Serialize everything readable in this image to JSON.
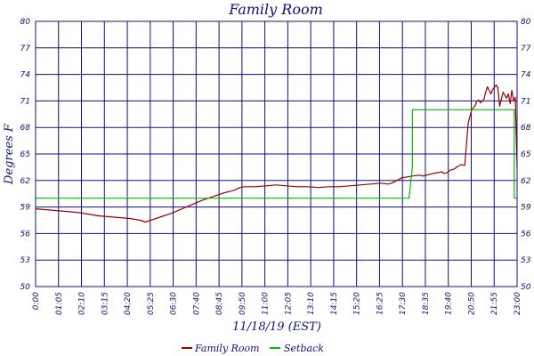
{
  "chart_data": {
    "type": "line",
    "title": "Family Room",
    "xlabel": "11/18/19 (EST)",
    "ylabel": "Degrees F",
    "y_tick_labels": [
      "50",
      "53",
      "56",
      "59",
      "62",
      "65",
      "68",
      "71",
      "74",
      "77",
      "80"
    ],
    "x_tick_labels": [
      "0:00",
      "01:05",
      "02:10",
      "03:15",
      "04:20",
      "05:25",
      "06:30",
      "07:40",
      "08:45",
      "09:50",
      "11:00",
      "12:05",
      "13:10",
      "14:15",
      "15:20",
      "16:25",
      "17:30",
      "18:35",
      "19:40",
      "20:50",
      "21:55",
      "23:00"
    ],
    "xlim_minutes": [
      0,
      1380
    ],
    "ylim": [
      50,
      80
    ],
    "grid": true,
    "legend_position": "bottom",
    "colors": {
      "frame": "#10107a",
      "grid": "#10107a",
      "family_room": "#990000",
      "setback": "#00bb00"
    },
    "series": [
      {
        "name": "Family Room",
        "x_minutes": [
          0,
          30,
          60,
          90,
          120,
          150,
          180,
          210,
          240,
          270,
          300,
          315,
          330,
          360,
          390,
          420,
          450,
          480,
          510,
          540,
          570,
          585,
          600,
          630,
          660,
          690,
          720,
          750,
          780,
          810,
          840,
          870,
          900,
          930,
          960,
          990,
          1010,
          1020,
          1035,
          1050,
          1065,
          1080,
          1100,
          1110,
          1120,
          1130,
          1140,
          1155,
          1165,
          1170,
          1180,
          1190,
          1200,
          1210,
          1220,
          1230,
          1240,
          1250,
          1260,
          1265,
          1270,
          1275,
          1285,
          1290,
          1295,
          1305,
          1310,
          1320,
          1325,
          1330,
          1340,
          1350,
          1355,
          1360,
          1365,
          1370,
          1375,
          1380
        ],
        "values": [
          58.8,
          58.7,
          58.6,
          58.5,
          58.4,
          58.2,
          58.0,
          57.9,
          57.8,
          57.7,
          57.5,
          57.3,
          57.5,
          57.9,
          58.3,
          58.8,
          59.3,
          59.8,
          60.2,
          60.6,
          60.9,
          61.2,
          61.3,
          61.3,
          61.4,
          61.5,
          61.4,
          61.3,
          61.3,
          61.2,
          61.3,
          61.3,
          61.4,
          61.5,
          61.6,
          61.7,
          61.6,
          61.7,
          62.0,
          62.3,
          62.4,
          62.5,
          62.6,
          62.5,
          62.6,
          62.7,
          62.8,
          62.9,
          63.0,
          62.8,
          62.9,
          63.2,
          63.3,
          63.6,
          63.8,
          63.7,
          68.5,
          70.0,
          70.5,
          71.0,
          71.1,
          70.8,
          71.2,
          72.0,
          72.6,
          71.8,
          72.3,
          72.8,
          72.5,
          70.4,
          72.0,
          71.3,
          71.8,
          70.7,
          72.2,
          71.0,
          71.4,
          63.5
        ]
      },
      {
        "name": "Setback",
        "x_minutes": [
          0,
          1070,
          1070,
          1080,
          1080,
          1372,
          1372,
          1380
        ],
        "values": [
          60.0,
          60.0,
          60.0,
          63.5,
          70.0,
          70.0,
          60.0,
          60.0
        ]
      }
    ]
  }
}
